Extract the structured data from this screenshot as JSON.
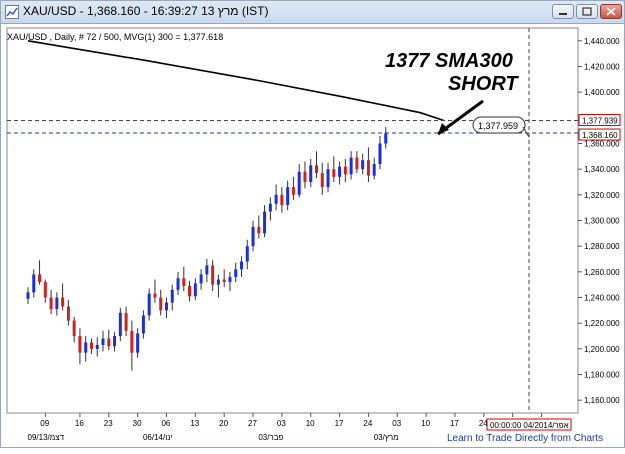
{
  "window": {
    "title": "XAU/USD - 1,368.160 - 16:39:27  מרץ 13 (IST)",
    "buttons": [
      "minimize-icon",
      "maximize-icon",
      "close-icon"
    ]
  },
  "chart_info": "XAU/USD , Daily, # 72 / 500, MVG(1) 300 = 1,377.618",
  "annotation": {
    "line1": "1377 SMA300",
    "line2": "SHORT",
    "callout_value": "1,377.959"
  },
  "price_tags": {
    "sma": "1,377.939",
    "last": "1,368.160"
  },
  "footer": {
    "crosshair_date": "00:00:00 04/2014/אפר",
    "link": "Learn to Trade Directly from Charts"
  },
  "chart_data": {
    "type": "candlestick",
    "ylim": [
      1150,
      1450
    ],
    "y_ticks": [
      {
        "value": 1440,
        "label": "1,440.000"
      },
      {
        "value": 1420,
        "label": "1,420.000"
      },
      {
        "value": 1400,
        "label": "1,400.000"
      },
      {
        "value": 1380,
        "label": "1,380.000"
      },
      {
        "value": 1360,
        "label": "1,360.000"
      },
      {
        "value": 1340,
        "label": "1,340.000"
      },
      {
        "value": 1320,
        "label": "1,320.000"
      },
      {
        "value": 1300,
        "label": "1,300.000"
      },
      {
        "value": 1280,
        "label": "1,280.000"
      },
      {
        "value": 1260,
        "label": "1,260.000"
      },
      {
        "value": 1240,
        "label": "1,240.000"
      },
      {
        "value": 1220,
        "label": "1,220.000"
      },
      {
        "value": 1200,
        "label": "1,200.000"
      },
      {
        "value": 1180,
        "label": "1,180.000"
      },
      {
        "value": 1160,
        "label": "1,160.000"
      }
    ],
    "x_day_ticks": [
      {
        "i": 3,
        "label": "09"
      },
      {
        "i": 9,
        "label": "16"
      },
      {
        "i": 14,
        "label": "23"
      },
      {
        "i": 19,
        "label": "30"
      },
      {
        "i": 24,
        "label": "06"
      },
      {
        "i": 29,
        "label": "13"
      },
      {
        "i": 34,
        "label": "20"
      },
      {
        "i": 39,
        "label": "27"
      },
      {
        "i": 44,
        "label": "03"
      },
      {
        "i": 49,
        "label": "10"
      },
      {
        "i": 54,
        "label": "17"
      },
      {
        "i": 59,
        "label": "24"
      },
      {
        "i": 64,
        "label": "03"
      },
      {
        "i": 69,
        "label": "10"
      },
      {
        "i": 74,
        "label": "17"
      },
      {
        "i": 79,
        "label": "24"
      },
      {
        "i": 84,
        "label": "31"
      },
      {
        "i": 89,
        "label": "07"
      }
    ],
    "x_month_ticks": [
      {
        "i": 2,
        "label": "09/13/דצמ"
      },
      {
        "i": 22,
        "label": "06/14/ינו"
      },
      {
        "i": 42,
        "label": "03/פבר"
      },
      {
        "i": 62,
        "label": "03/מרץ"
      }
    ],
    "sma300": [
      [
        0,
        1440
      ],
      [
        20,
        1425
      ],
      [
        40,
        1409
      ],
      [
        55,
        1396
      ],
      [
        68,
        1384
      ],
      [
        72,
        1378
      ]
    ],
    "candles": [
      [
        1239,
        1248,
        1235,
        1244
      ],
      [
        1244,
        1262,
        1240,
        1258
      ],
      [
        1258,
        1269,
        1250,
        1252
      ],
      [
        1252,
        1254,
        1236,
        1240
      ],
      [
        1240,
        1246,
        1227,
        1231
      ],
      [
        1231,
        1244,
        1226,
        1240
      ],
      [
        1240,
        1251,
        1230,
        1233
      ],
      [
        1233,
        1238,
        1218,
        1222
      ],
      [
        1222,
        1225,
        1205,
        1210
      ],
      [
        1210,
        1216,
        1188,
        1197
      ],
      [
        1197,
        1210,
        1190,
        1205
      ],
      [
        1205,
        1208,
        1196,
        1200
      ],
      [
        1200,
        1209,
        1194,
        1203
      ],
      [
        1203,
        1214,
        1198,
        1208
      ],
      [
        1208,
        1215,
        1199,
        1202
      ],
      [
        1202,
        1213,
        1198,
        1210
      ],
      [
        1210,
        1232,
        1206,
        1228
      ],
      [
        1228,
        1233,
        1210,
        1214
      ],
      [
        1214,
        1222,
        1183,
        1197
      ],
      [
        1197,
        1216,
        1193,
        1212
      ],
      [
        1212,
        1230,
        1208,
        1226
      ],
      [
        1226,
        1247,
        1222,
        1243
      ],
      [
        1243,
        1254,
        1236,
        1240
      ],
      [
        1240,
        1246,
        1226,
        1230
      ],
      [
        1230,
        1240,
        1224,
        1236
      ],
      [
        1236,
        1250,
        1230,
        1246
      ],
      [
        1246,
        1260,
        1242,
        1255
      ],
      [
        1255,
        1264,
        1245,
        1249
      ],
      [
        1249,
        1253,
        1237,
        1241
      ],
      [
        1241,
        1255,
        1238,
        1251
      ],
      [
        1251,
        1262,
        1246,
        1258
      ],
      [
        1258,
        1270,
        1252,
        1265
      ],
      [
        1265,
        1269,
        1245,
        1250
      ],
      [
        1250,
        1258,
        1240,
        1254
      ],
      [
        1254,
        1262,
        1248,
        1252
      ],
      [
        1252,
        1260,
        1245,
        1256
      ],
      [
        1256,
        1267,
        1252,
        1262
      ],
      [
        1262,
        1272,
        1256,
        1268
      ],
      [
        1268,
        1285,
        1262,
        1280
      ],
      [
        1280,
        1300,
        1276,
        1295
      ],
      [
        1295,
        1304,
        1286,
        1290
      ],
      [
        1290,
        1312,
        1287,
        1307
      ],
      [
        1307,
        1318,
        1300,
        1313
      ],
      [
        1313,
        1328,
        1308,
        1320
      ],
      [
        1320,
        1326,
        1306,
        1312
      ],
      [
        1312,
        1331,
        1308,
        1326
      ],
      [
        1326,
        1334,
        1316,
        1320
      ],
      [
        1320,
        1344,
        1318,
        1338
      ],
      [
        1338,
        1346,
        1325,
        1330
      ],
      [
        1330,
        1348,
        1326,
        1343
      ],
      [
        1343,
        1354,
        1333,
        1337
      ],
      [
        1337,
        1345,
        1320,
        1326
      ],
      [
        1326,
        1345,
        1322,
        1340
      ],
      [
        1340,
        1350,
        1330,
        1334
      ],
      [
        1334,
        1346,
        1328,
        1342
      ],
      [
        1342,
        1348,
        1330,
        1336
      ],
      [
        1336,
        1354,
        1332,
        1349
      ],
      [
        1349,
        1354,
        1337,
        1340
      ],
      [
        1340,
        1352,
        1336,
        1347
      ],
      [
        1347,
        1357,
        1330,
        1335
      ],
      [
        1335,
        1349,
        1332,
        1344
      ],
      [
        1344,
        1366,
        1340,
        1360
      ],
      [
        1360,
        1373,
        1356,
        1368
      ]
    ]
  }
}
